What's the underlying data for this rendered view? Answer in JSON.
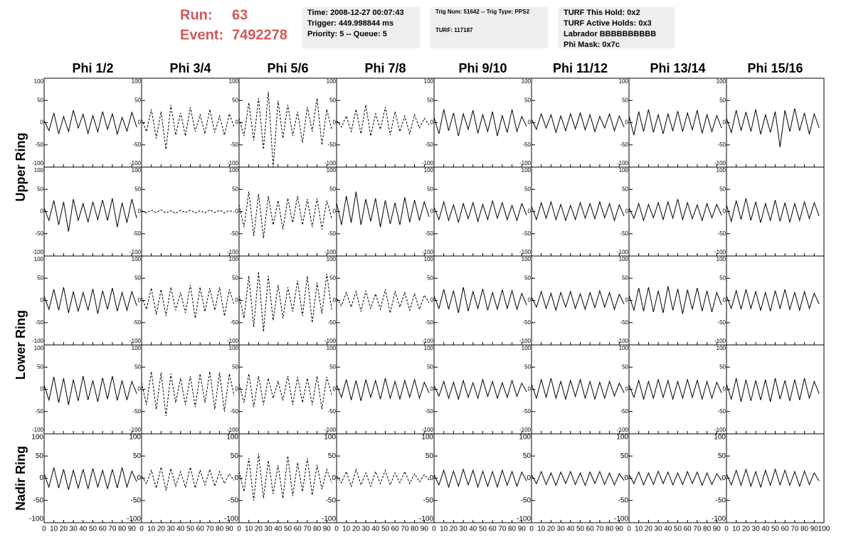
{
  "header": {
    "run_label": "Run:",
    "run": "63",
    "event_label": "Event:",
    "event": "7492278"
  },
  "info_boxes": [
    [
      "Time: 2008-12-27 00:07:43",
      "Trigger: 449.998844 ms",
      "Priority: 5 -- Queue: 5"
    ],
    [
      "Trig Num: 51642 -- Trig Type: PPS2",
      "TURF: 117187"
    ],
    [
      "TURF This Hold: 0x2",
      "TURF Active Holds: 0x3",
      "Labrador BBBBBBBBBB",
      "Phi Mask: 0x7c"
    ]
  ],
  "columns": [
    "Phi 1/2",
    "Phi 3/4",
    "Phi 5/6",
    "Phi 7/8",
    "Phi 9/10",
    "Phi 11/12",
    "Phi 13/14",
    "Phi 15/16"
  ],
  "axis": {
    "xlim": [
      0,
      100
    ],
    "ylim": [
      -100,
      100
    ],
    "xticks": [
      0,
      10,
      20,
      30,
      40,
      50,
      60,
      70,
      80,
      90,
      100
    ],
    "yticks": [
      -100,
      -50,
      0,
      50,
      100
    ]
  },
  "x": [
    0,
    5,
    10,
    15,
    20,
    25,
    30,
    35,
    40,
    45,
    50,
    55,
    60,
    65,
    70,
    75,
    80,
    85,
    90,
    95
  ],
  "rings": [
    {
      "name": "Upper Ring",
      "rows": [
        [
          {
            "dashed": false,
            "values": [
              5,
              -18,
              22,
              -25,
              14,
              -20,
              28,
              -12,
              19,
              -24,
              16,
              -21,
              25,
              -15,
              20,
              -26,
              12,
              -19,
              23,
              -10
            ]
          },
          {
            "dashed": true,
            "values": [
              8,
              -20,
              30,
              -35,
              25,
              -60,
              40,
              -28,
              22,
              -30,
              35,
              -20,
              18,
              -25,
              30,
              -22,
              15,
              -28,
              20,
              -10
            ]
          },
          {
            "dashed": true,
            "values": [
              10,
              -30,
              45,
              -40,
              55,
              -60,
              70,
              -100,
              50,
              -35,
              40,
              -30,
              25,
              -45,
              35,
              -20,
              55,
              -50,
              30,
              -15
            ]
          },
          {
            "dashed": true,
            "values": [
              5,
              -10,
              15,
              -20,
              30,
              -25,
              40,
              -30,
              20,
              -15,
              35,
              -28,
              25,
              -20,
              15,
              -25,
              18,
              -12,
              10,
              -5
            ]
          },
          {
            "dashed": false,
            "values": [
              12,
              -25,
              30,
              -18,
              22,
              -30,
              20,
              -15,
              28,
              -24,
              18,
              -20,
              25,
              -30,
              16,
              -22,
              30,
              -20,
              14,
              -8
            ]
          },
          {
            "dashed": false,
            "values": [
              8,
              -15,
              20,
              -12,
              18,
              -22,
              15,
              -18,
              20,
              -14,
              22,
              -16,
              18,
              -20,
              14,
              -12,
              20,
              -18,
              15,
              -10
            ]
          },
          {
            "dashed": false,
            "values": [
              15,
              -28,
              25,
              -20,
              30,
              -22,
              18,
              -25,
              20,
              -18,
              26,
              -20,
              22,
              -16,
              28,
              -24,
              18,
              -20,
              16,
              -12
            ]
          },
          {
            "dashed": false,
            "values": [
              10,
              -22,
              28,
              -18,
              24,
              -20,
              30,
              -26,
              18,
              -22,
              25,
              -55,
              28,
              -20,
              32,
              -18,
              22,
              -26,
              20,
              -12
            ]
          }
        ],
        [
          {
            "dashed": false,
            "values": [
              8,
              -20,
              25,
              -30,
              22,
              -45,
              28,
              -20,
              18,
              -24,
              22,
              -18,
              26,
              -20,
              30,
              -35,
              20,
              -25,
              28,
              -15
            ]
          },
          {
            "dashed": true,
            "values": [
              2,
              -3,
              3,
              -2,
              4,
              -3,
              2,
              -4,
              3,
              -2,
              3,
              -3,
              2,
              -3,
              4,
              -2,
              3,
              -3,
              2,
              -1
            ]
          },
          {
            "dashed": true,
            "values": [
              15,
              -35,
              45,
              -55,
              40,
              -60,
              35,
              -30,
              25,
              -40,
              30,
              -25,
              35,
              -30,
              28,
              -35,
              30,
              -40,
              25,
              -15
            ]
          },
          {
            "dashed": false,
            "values": [
              20,
              -30,
              35,
              -25,
              45,
              -30,
              28,
              -22,
              30,
              -35,
              25,
              -28,
              20,
              -30,
              32,
              -24,
              26,
              -20,
              22,
              -12
            ]
          },
          {
            "dashed": false,
            "values": [
              10,
              -18,
              22,
              -20,
              15,
              -24,
              18,
              -16,
              20,
              -22,
              16,
              -18,
              24,
              -15,
              20,
              -18,
              14,
              -20,
              18,
              -8
            ]
          },
          {
            "dashed": false,
            "values": [
              12,
              -18,
              20,
              -15,
              22,
              -18,
              16,
              -20,
              14,
              -18,
              20,
              -15,
              18,
              -16,
              22,
              -14,
              18,
              -20,
              15,
              -10
            ]
          },
          {
            "dashed": false,
            "values": [
              8,
              -15,
              18,
              -20,
              16,
              -14,
              20,
              -18,
              22,
              -15,
              28,
              -18,
              20,
              -16,
              15,
              -20,
              18,
              -14,
              16,
              -8
            ]
          },
          {
            "dashed": false,
            "values": [
              15,
              -22,
              25,
              -18,
              30,
              -20,
              22,
              -25,
              18,
              -20,
              26,
              -22,
              20,
              -24,
              18,
              -20,
              22,
              -16,
              20,
              -10
            ]
          }
        ]
      ]
    },
    {
      "name": "Lower Ring",
      "rows": [
        [
          {
            "dashed": false,
            "values": [
              10,
              -20,
              25,
              -22,
              30,
              -28,
              20,
              -25,
              18,
              -22,
              26,
              -30,
              22,
              -20,
              28,
              -24,
              18,
              -22,
              20,
              -12
            ]
          },
          {
            "dashed": true,
            "values": [
              8,
              -20,
              28,
              -32,
              25,
              -35,
              30,
              -22,
              18,
              -28,
              35,
              -40,
              30,
              -25,
              28,
              -22,
              30,
              -35,
              25,
              -10
            ]
          },
          {
            "dashed": true,
            "values": [
              12,
              -40,
              55,
              -60,
              65,
              -70,
              55,
              -45,
              35,
              -40,
              30,
              -25,
              45,
              -35,
              55,
              -50,
              40,
              -30,
              60,
              -20
            ]
          },
          {
            "dashed": true,
            "values": [
              5,
              -12,
              18,
              -15,
              20,
              -25,
              22,
              -18,
              15,
              -20,
              25,
              -28,
              20,
              -15,
              18,
              -22,
              15,
              -20,
              12,
              -5
            ]
          },
          {
            "dashed": false,
            "values": [
              10,
              -18,
              25,
              -20,
              22,
              -28,
              30,
              -24,
              20,
              -18,
              26,
              -22,
              18,
              -20,
              24,
              -18,
              22,
              -20,
              16,
              -10
            ]
          },
          {
            "dashed": false,
            "values": [
              8,
              -15,
              20,
              -18,
              16,
              -22,
              18,
              -15,
              20,
              -18,
              15,
              -20,
              18,
              -16,
              22,
              -15,
              18,
              -20,
              14,
              -8
            ]
          },
          {
            "dashed": false,
            "values": [
              12,
              -22,
              28,
              -24,
              30,
              -26,
              22,
              -28,
              32,
              -22,
              26,
              -30,
              24,
              -20,
              28,
              -24,
              22,
              -26,
              18,
              -10
            ]
          },
          {
            "dashed": false,
            "values": [
              10,
              -18,
              22,
              -20,
              25,
              -18,
              20,
              -22,
              18,
              -24,
              22,
              -18,
              25,
              -20,
              18,
              -22,
              20,
              -18,
              16,
              -8
            ]
          }
        ],
        [
          {
            "dashed": false,
            "values": [
              10,
              -24,
              28,
              -30,
              25,
              -35,
              22,
              -26,
              30,
              -24,
              20,
              -28,
              26,
              -22,
              30,
              -25,
              20,
              -24,
              18,
              -10
            ]
          },
          {
            "dashed": true,
            "values": [
              15,
              -35,
              40,
              -45,
              38,
              -60,
              35,
              -30,
              25,
              -35,
              30,
              -40,
              35,
              -30,
              40,
              -45,
              38,
              -50,
              35,
              -15
            ]
          },
          {
            "dashed": true,
            "values": [
              12,
              -30,
              35,
              -40,
              30,
              -35,
              25,
              -20,
              18,
              -25,
              30,
              -35,
              28,
              -30,
              25,
              -35,
              30,
              -45,
              28,
              -12
            ]
          },
          {
            "dashed": false,
            "values": [
              10,
              -18,
              22,
              -24,
              20,
              -26,
              22,
              -18,
              20,
              -22,
              25,
              -20,
              18,
              -22,
              20,
              -18,
              22,
              -20,
              16,
              -8
            ]
          },
          {
            "dashed": false,
            "values": [
              8,
              -15,
              18,
              -20,
              16,
              -22,
              20,
              -18,
              15,
              -20,
              22,
              -16,
              18,
              -20,
              15,
              -18,
              20,
              -16,
              14,
              -6
            ]
          },
          {
            "dashed": false,
            "values": [
              12,
              -20,
              22,
              -18,
              25,
              -20,
              18,
              -22,
              20,
              -16,
              22,
              -20,
              18,
              -22,
              16,
              -20,
              18,
              -15,
              14,
              -8
            ]
          },
          {
            "dashed": false,
            "values": [
              10,
              -18,
              20,
              -22,
              18,
              -20,
              22,
              -18,
              20,
              -22,
              18,
              -20,
              22,
              -18,
              20,
              -22,
              18,
              -20,
              16,
              -8
            ]
          },
          {
            "dashed": false,
            "values": [
              12,
              -22,
              25,
              -28,
              22,
              -26,
              20,
              -24,
              22,
              -28,
              25,
              -22,
              20,
              -26,
              22,
              -24,
              25,
              -20,
              18,
              -10
            ]
          }
        ]
      ]
    },
    {
      "name": "Nadir Ring",
      "rows": [
        [
          {
            "dashed": false,
            "values": [
              10,
              -20,
              24,
              -22,
              20,
              -26,
              18,
              -22,
              20,
              -24,
              22,
              -20,
              18,
              -24,
              20,
              -22,
              24,
              -20,
              16,
              -8
            ]
          },
          {
            "dashed": true,
            "values": [
              5,
              -12,
              18,
              -22,
              25,
              -28,
              22,
              -18,
              15,
              -20,
              25,
              -22,
              18,
              -15,
              20,
              -18,
              15,
              -12,
              10,
              -5
            ]
          },
          {
            "dashed": true,
            "values": [
              15,
              -30,
              45,
              -50,
              55,
              -45,
              40,
              -35,
              30,
              -45,
              50,
              -40,
              35,
              -30,
              45,
              -38,
              30,
              -25,
              20,
              -10
            ]
          },
          {
            "dashed": true,
            "values": [
              5,
              -10,
              15,
              -18,
              20,
              -15,
              12,
              -18,
              15,
              -12,
              18,
              -15,
              12,
              -10,
              15,
              -12,
              10,
              -8,
              8,
              -4
            ]
          },
          {
            "dashed": false,
            "values": [
              8,
              -15,
              18,
              -20,
              16,
              -18,
              20,
              -15,
              18,
              -20,
              16,
              -18,
              15,
              -20,
              18,
              -16,
              15,
              -18,
              14,
              -6
            ]
          },
          {
            "dashed": false,
            "values": [
              8,
              -12,
              15,
              -14,
              12,
              -16,
              14,
              -12,
              15,
              -14,
              12,
              -16,
              14,
              -12,
              15,
              -14,
              12,
              -15,
              10,
              -5
            ]
          },
          {
            "dashed": false,
            "values": [
              8,
              -12,
              14,
              -15,
              12,
              -14,
              16,
              -12,
              14,
              -15,
              12,
              -14,
              15,
              -12,
              14,
              -16,
              12,
              -14,
              10,
              -5
            ]
          },
          {
            "dashed": false,
            "values": [
              10,
              -15,
              18,
              -16,
              20,
              -18,
              15,
              -20,
              18,
              -16,
              20,
              -15,
              18,
              -16,
              15,
              -18,
              16,
              -14,
              12,
              -6
            ]
          }
        ]
      ]
    }
  ]
}
